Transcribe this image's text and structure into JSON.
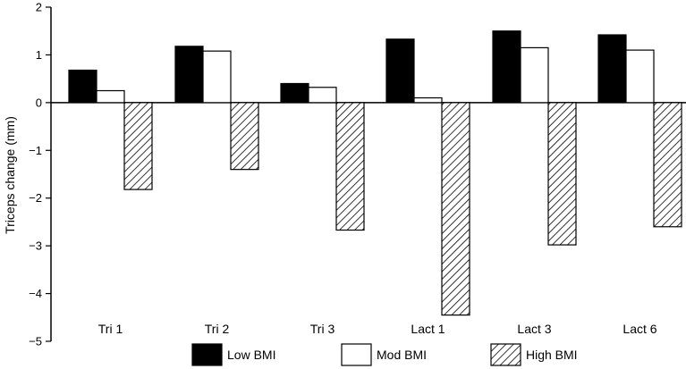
{
  "chart_data": {
    "type": "bar",
    "title": "",
    "xlabel": "",
    "ylabel": "Triceps change (mm)",
    "ylim": [
      -5,
      2
    ],
    "yticks": [
      2,
      1,
      0,
      -1,
      -2,
      -3,
      -4,
      -5
    ],
    "grid": false,
    "legend_position": "bottom",
    "categories": [
      "Tri 1",
      "Tri 2",
      "Tri 3",
      "Lact 1",
      "Lact 3",
      "Lact 6"
    ],
    "series": [
      {
        "name": "Low BMI",
        "fill": "#000000",
        "pattern": "solid",
        "values": [
          0.68,
          1.18,
          0.4,
          1.33,
          1.5,
          1.42
        ]
      },
      {
        "name": "Mod BMI",
        "fill": "#ffffff",
        "pattern": "solid",
        "values": [
          0.25,
          1.08,
          0.32,
          0.1,
          1.15,
          1.1
        ]
      },
      {
        "name": "High BMI",
        "fill": "#ffffff",
        "pattern": "hatch",
        "values": [
          -1.82,
          -1.4,
          -2.67,
          -4.45,
          -2.98,
          -2.6
        ]
      }
    ]
  }
}
